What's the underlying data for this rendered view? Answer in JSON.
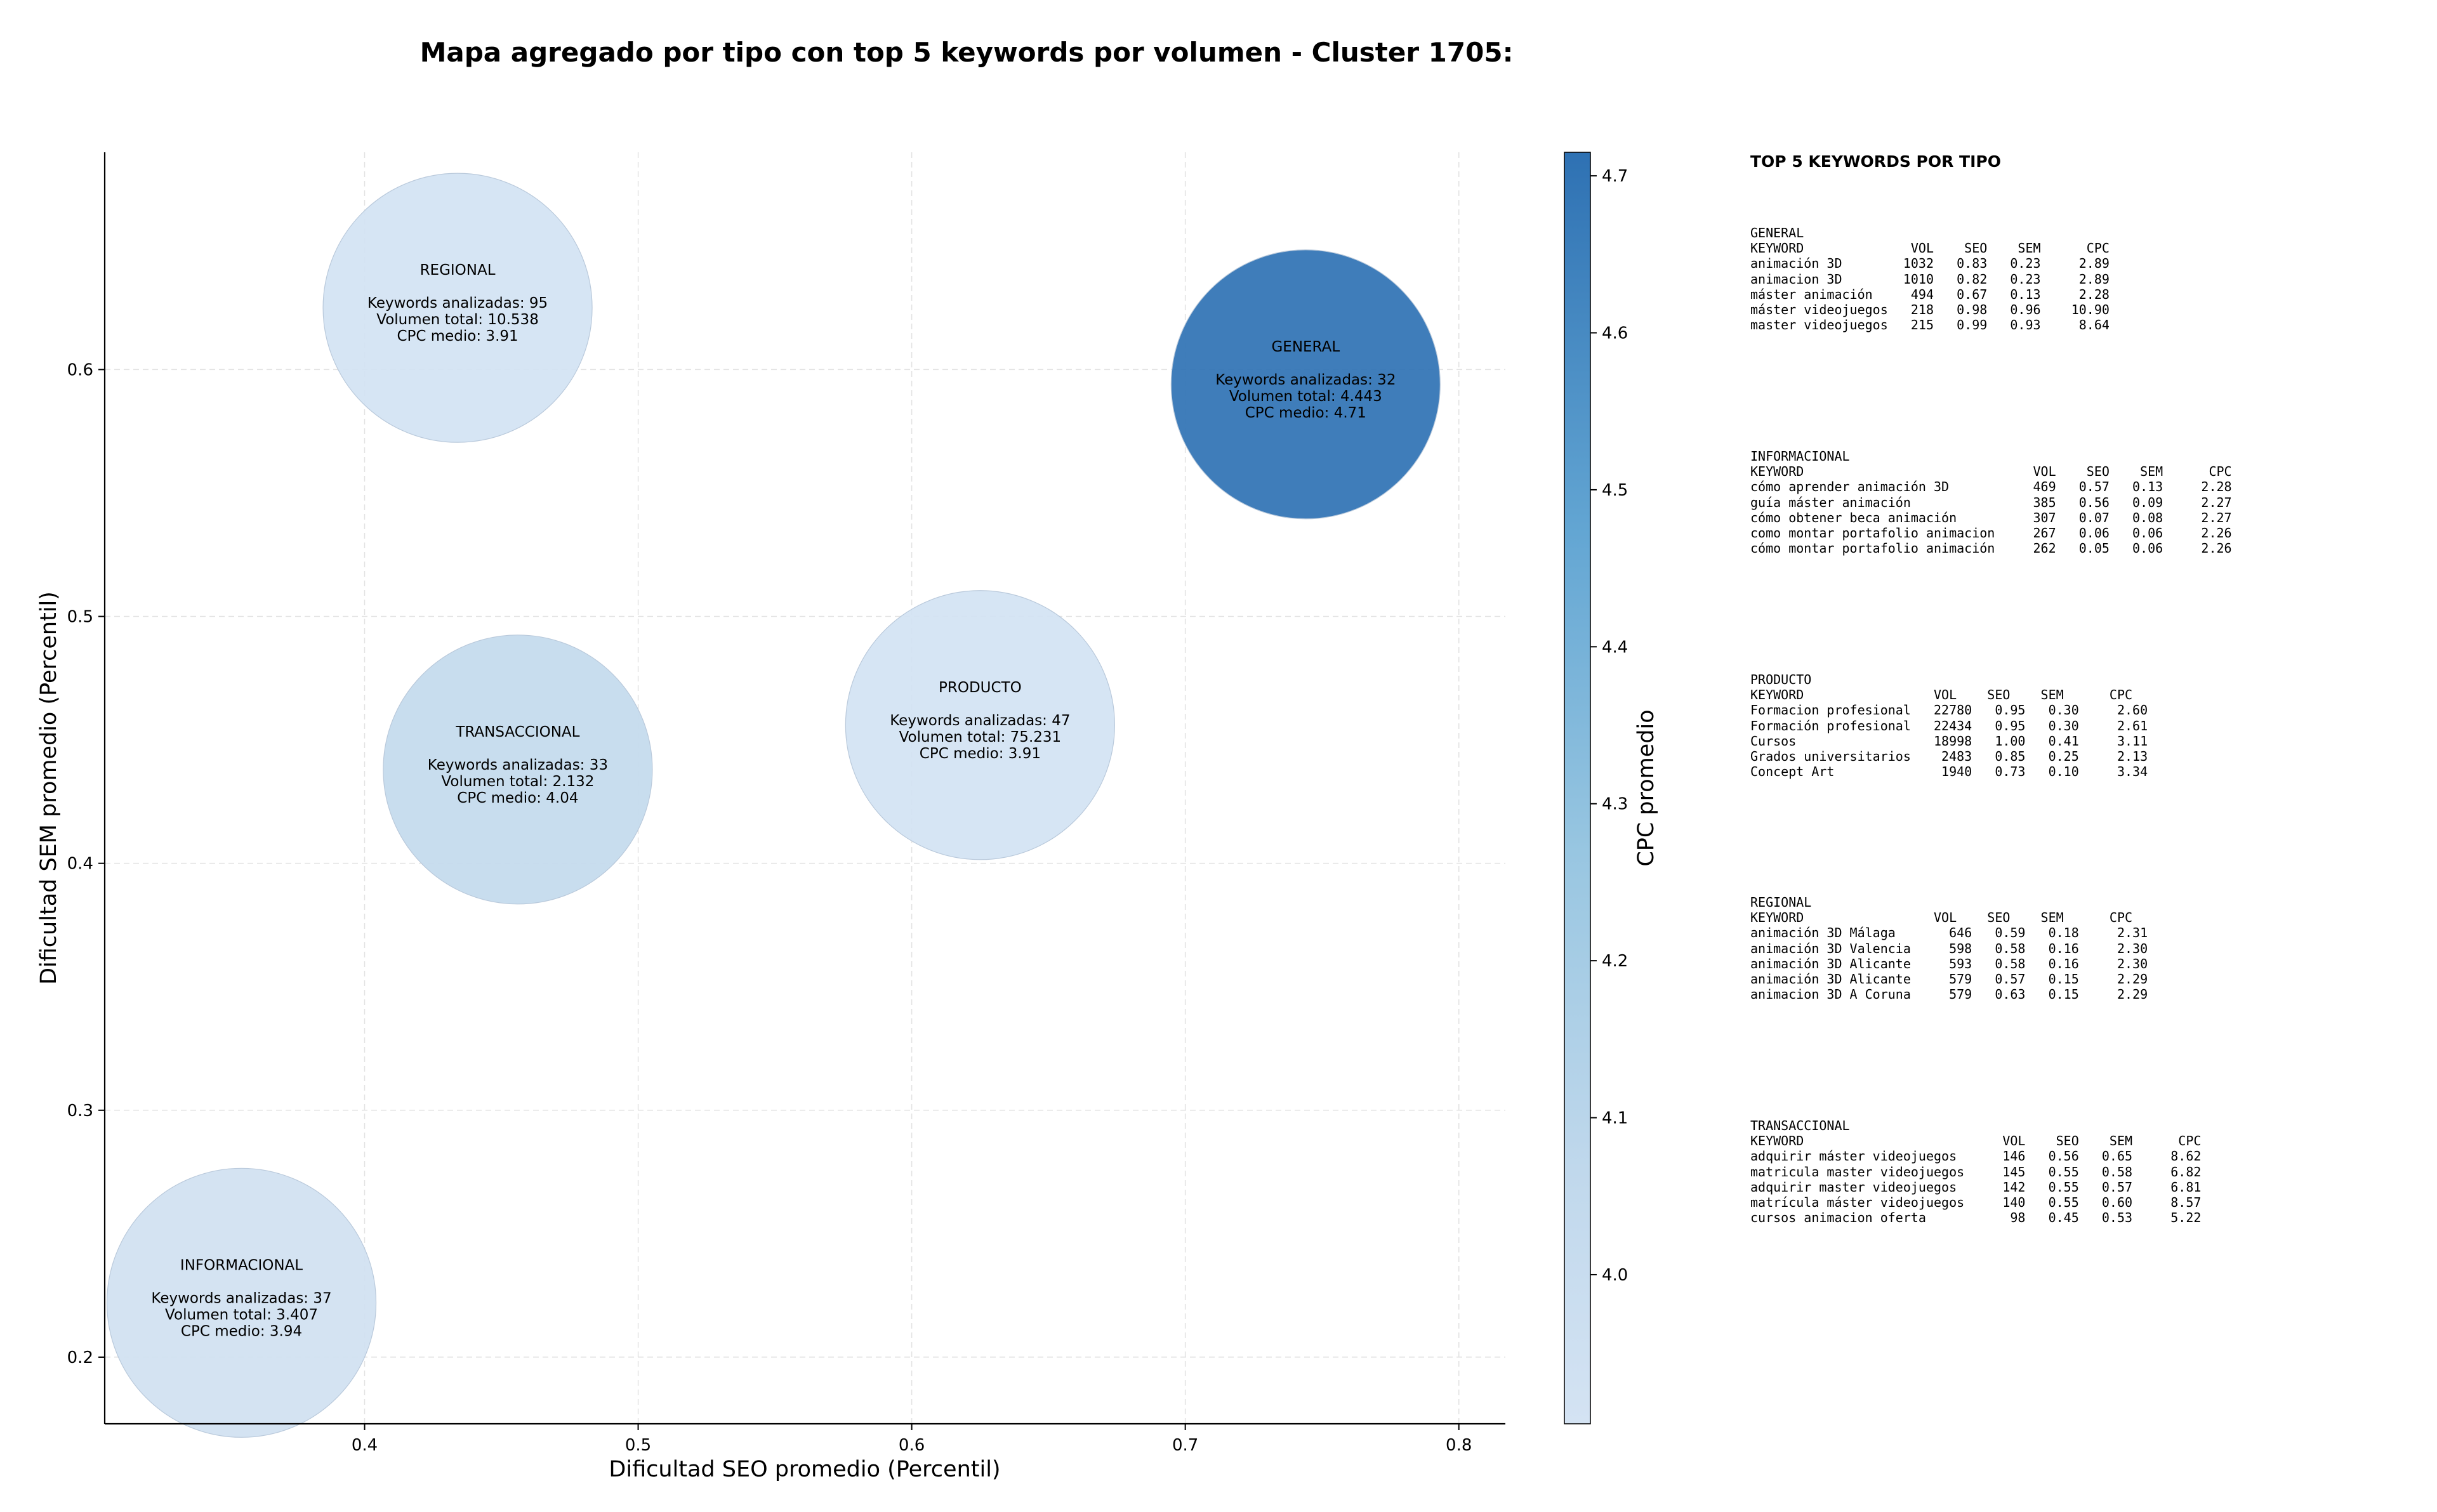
{
  "chart_data": {
    "type": "scatter",
    "title": "Mapa agregado por tipo con top 5 keywords por volumen - Cluster 1705:",
    "xlabel": "Dificultad SEO promedio (Percentil)",
    "ylabel": "Dificultad SEM promedio (Percentil)",
    "xlim": [
      0.305,
      0.817
    ],
    "ylim": [
      0.173,
      0.688
    ],
    "xticks": [
      0.4,
      0.5,
      0.6,
      0.7,
      0.8
    ],
    "yticks": [
      0.2,
      0.3,
      0.4,
      0.5,
      0.6
    ],
    "grid": true,
    "colorbar": {
      "label": "CPC promedio",
      "min": 3.905,
      "max": 4.715,
      "ticks": [
        4.0,
        4.1,
        4.2,
        4.3,
        4.4,
        4.5,
        4.6,
        4.7
      ]
    },
    "bubbles": [
      {
        "name": "REGIONAL",
        "x": 0.434,
        "y": 0.625,
        "cpc": 3.91,
        "lines": [
          "Keywords analizadas: 95",
          "Volumen total: 10.538",
          "CPC medio: 3.91"
        ]
      },
      {
        "name": "GENERAL",
        "x": 0.744,
        "y": 0.594,
        "cpc": 4.71,
        "lines": [
          "Keywords analizadas: 32",
          "Volumen total: 4.443",
          "CPC medio: 4.71"
        ]
      },
      {
        "name": "TRANSACCIONAL",
        "x": 0.456,
        "y": 0.438,
        "cpc": 4.04,
        "lines": [
          "Keywords analizadas: 33",
          "Volumen total: 2.132",
          "CPC medio: 4.04"
        ]
      },
      {
        "name": "PRODUCTO",
        "x": 0.625,
        "y": 0.456,
        "cpc": 3.91,
        "lines": [
          "Keywords analizadas: 47",
          "Volumen total: 75.231",
          "CPC medio: 3.91"
        ]
      },
      {
        "name": "INFORMACIONAL",
        "x": 0.355,
        "y": 0.222,
        "cpc": 3.94,
        "lines": [
          "Keywords analizadas: 37",
          "Volumen total: 3.407",
          "CPC medio: 3.94"
        ]
      }
    ]
  },
  "tables": {
    "heading": "TOP 5 KEYWORDS POR TIPO",
    "blocks": [
      {
        "name": "general",
        "lines": [
          "GENERAL",
          "KEYWORD              VOL    SEO    SEM      CPC",
          "animación 3D        1032   0.83   0.23     2.89",
          "animacion 3D        1010   0.82   0.23     2.89",
          "máster animación     494   0.67   0.13     2.28",
          "máster videojuegos   218   0.98   0.96    10.90",
          "master videojuegos   215   0.99   0.93     8.64"
        ]
      },
      {
        "name": "informacional",
        "lines": [
          "INFORMACIONAL",
          "KEYWORD                              VOL    SEO    SEM      CPC",
          "cómo aprender animación 3D           469   0.57   0.13     2.28",
          "guía máster animación                385   0.56   0.09     2.27",
          "cómo obtener beca animación          307   0.07   0.08     2.27",
          "como montar portafolio animacion     267   0.06   0.06     2.26",
          "cómo montar portafolio animación     262   0.05   0.06     2.26"
        ]
      },
      {
        "name": "producto",
        "lines": [
          "PRODUCTO",
          "KEYWORD                 VOL    SEO    SEM      CPC",
          "Formacion profesional   22780   0.95   0.30     2.60",
          "Formación profesional   22434   0.95   0.30     2.61",
          "Cursos                  18998   1.00   0.41     3.11",
          "Grados universitarios    2483   0.85   0.25     2.13",
          "Concept Art              1940   0.73   0.10     3.34"
        ]
      },
      {
        "name": "regional",
        "lines": [
          "REGIONAL",
          "KEYWORD                 VOL    SEO    SEM      CPC",
          "animación 3D Málaga       646   0.59   0.18     2.31",
          "animación 3D Valencia     598   0.58   0.16     2.30",
          "animación 3D Alicante     593   0.58   0.16     2.30",
          "animación 3D Alicante     579   0.57   0.15     2.29",
          "animacion 3D A Coruna     579   0.63   0.15     2.29"
        ]
      },
      {
        "name": "transaccional",
        "lines": [
          "TRANSACCIONAL",
          "KEYWORD                          VOL    SEO    SEM      CPC",
          "adquirir máster videojuegos      146   0.56   0.65     8.62",
          "matricula master videojuegos     145   0.55   0.58     6.82",
          "adquirir master videojuegos      142   0.55   0.57     6.81",
          "matrícula máster videojuegos     140   0.55   0.60     8.57",
          "cursos animacion oferta           98   0.45   0.53     5.22"
        ]
      }
    ]
  }
}
